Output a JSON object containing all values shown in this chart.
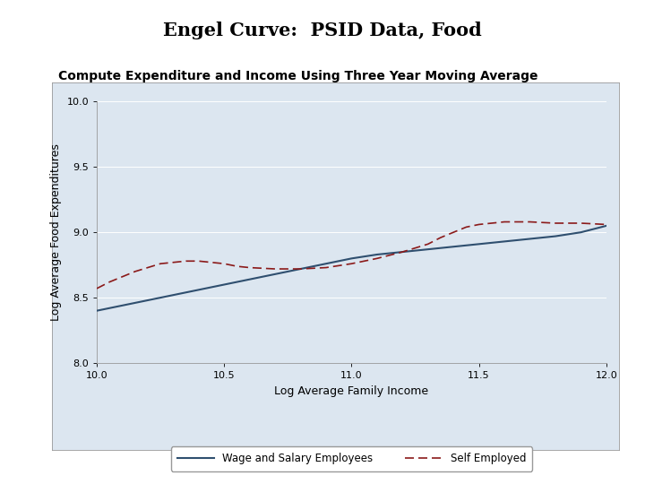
{
  "title": "Engel Curve:  PSID Data, Food",
  "subtitle": "Compute Expenditure and Income Using Three Year Moving Average",
  "xlabel": "Log Average Family Income",
  "ylabel": "Log Average Food Expenditures",
  "xlim": [
    10,
    12
  ],
  "ylim": [
    8,
    10
  ],
  "xticks": [
    10,
    10.5,
    11,
    11.5,
    12
  ],
  "yticks": [
    8,
    8.5,
    9,
    9.5,
    10
  ],
  "plot_bg_color": "#dce6f0",
  "outer_bg": "#ffffff",
  "wage_color": "#2f4f6f",
  "self_color": "#8b1a1a",
  "legend_label_wage": "Wage and Salary Employees",
  "legend_label_self": "Self Employed",
  "title_fontsize": 15,
  "subtitle_fontsize": 10,
  "axis_label_fontsize": 9,
  "tick_fontsize": 8,
  "wage_x": [
    10.0,
    10.1,
    10.2,
    10.3,
    10.4,
    10.5,
    10.6,
    10.7,
    10.8,
    10.9,
    11.0,
    11.1,
    11.2,
    11.3,
    11.4,
    11.5,
    11.6,
    11.7,
    11.8,
    11.9,
    12.0
  ],
  "wage_y": [
    8.4,
    8.44,
    8.48,
    8.52,
    8.56,
    8.6,
    8.64,
    8.68,
    8.72,
    8.76,
    8.8,
    8.83,
    8.85,
    8.87,
    8.89,
    8.91,
    8.93,
    8.95,
    8.97,
    9.0,
    9.05
  ],
  "self_x": [
    10.0,
    10.05,
    10.1,
    10.15,
    10.2,
    10.25,
    10.3,
    10.35,
    10.4,
    10.45,
    10.5,
    10.55,
    10.6,
    10.7,
    10.8,
    10.9,
    11.0,
    11.1,
    11.2,
    11.3,
    11.35,
    11.4,
    11.45,
    11.5,
    11.6,
    11.7,
    11.8,
    11.9,
    12.0
  ],
  "self_y": [
    8.57,
    8.62,
    8.66,
    8.7,
    8.73,
    8.76,
    8.77,
    8.78,
    8.78,
    8.77,
    8.76,
    8.74,
    8.73,
    8.72,
    8.72,
    8.73,
    8.76,
    8.8,
    8.85,
    8.91,
    8.96,
    9.0,
    9.04,
    9.06,
    9.08,
    9.08,
    9.07,
    9.07,
    9.06
  ]
}
